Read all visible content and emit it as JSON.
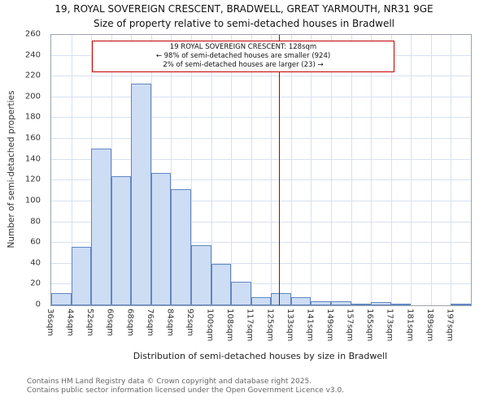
{
  "page_title": {
    "line1": "19, ROYAL SOVEREIGN CRESCENT, BRADWELL, GREAT YARMOUTH, NR31 9GE",
    "line2": "Size of property relative to semi-detached houses in Bradwell"
  },
  "chart_data": {
    "type": "bar",
    "title": "19, ROYAL SOVEREIGN CRESCENT, BRADWELL, GREAT YARMOUTH, NR31 9GE",
    "subtitle": "Size of property relative to semi-detached houses in Bradwell",
    "xlabel": "Distribution of semi-detached houses by size in Bradwell",
    "ylabel": "Number of semi-detached properties",
    "categories": [
      "36sqm",
      "44sqm",
      "52sqm",
      "60sqm",
      "68sqm",
      "76sqm",
      "84sqm",
      "92sqm",
      "100sqm",
      "108sqm",
      "117sqm",
      "125sqm",
      "133sqm",
      "141sqm",
      "149sqm",
      "157sqm",
      "165sqm",
      "173sqm",
      "181sqm",
      "189sqm",
      "197sqm"
    ],
    "values": [
      12,
      56,
      151,
      124,
      213,
      127,
      112,
      58,
      40,
      23,
      8,
      12,
      8,
      4,
      4,
      1,
      3,
      1,
      0,
      0,
      1
    ],
    "ylim": [
      0,
      260
    ],
    "y_tick_step": 20,
    "grid": true,
    "legend": false,
    "marker_value": 128,
    "bar_fill": "#cdddf4",
    "bar_border": "#6287c2",
    "marker_color": "#b00000"
  },
  "annotation": {
    "line1": "19 ROYAL SOVEREIGN CRESCENT: 128sqm",
    "line2": "← 98% of semi-detached houses are smaller (924)",
    "line3": "2% of semi-detached houses are larger (23) →"
  },
  "footer": {
    "line1": "Contains HM Land Registry data © Crown copyright and database right 2025.",
    "line2": "Contains public sector information licensed under the Open Government Licence v3.0."
  }
}
